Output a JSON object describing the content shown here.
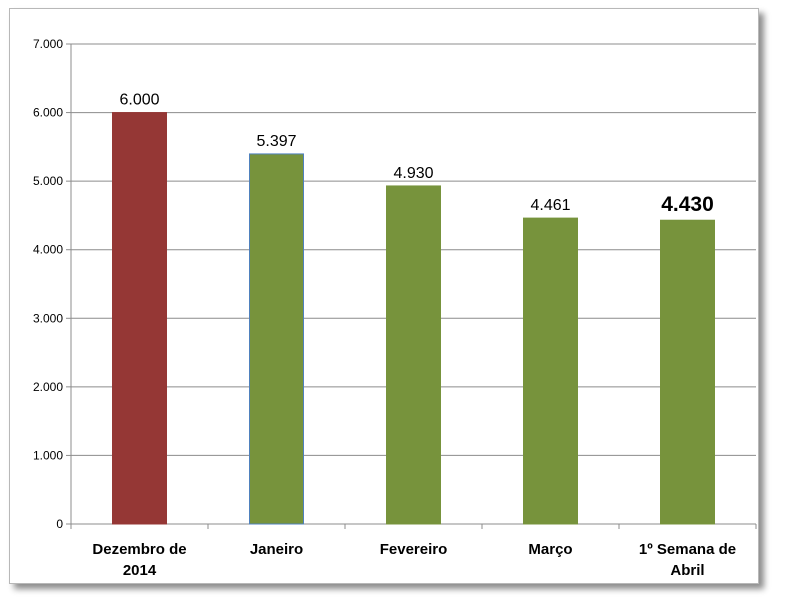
{
  "chart_data": {
    "type": "bar",
    "title": "",
    "xlabel": "",
    "ylabel": "",
    "ylim": [
      0,
      7000
    ],
    "yticks": [
      0,
      1000,
      2000,
      3000,
      4000,
      5000,
      6000,
      7000
    ],
    "ytick_labels": [
      "0",
      "1.000",
      "2.000",
      "3.000",
      "4.000",
      "5.000",
      "6.000",
      "7.000"
    ],
    "grid": true,
    "legend": "none",
    "categories": [
      [
        "Dezembro de",
        "2014"
      ],
      [
        "Janeiro"
      ],
      [
        "Fevereiro"
      ],
      [
        "Março"
      ],
      [
        "1º Semana de",
        "Abril"
      ]
    ],
    "values": [
      6000,
      5397,
      4930,
      4461,
      4430
    ],
    "data_labels": [
      "6.000",
      "5.397",
      "4.930",
      "4.461",
      "4.430"
    ],
    "emphasized_label_index": 4,
    "colors": [
      "#953735",
      "#77933c",
      "#77933c",
      "#77933c",
      "#77933c"
    ],
    "bar_outline_colors": [
      "#953735",
      "#4f81bd",
      "#77933c",
      "#77933c",
      "#77933c"
    ]
  }
}
